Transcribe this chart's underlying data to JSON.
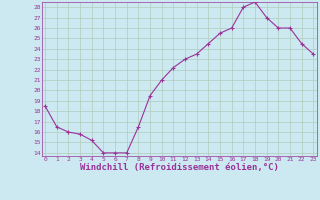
{
  "x": [
    0,
    1,
    2,
    3,
    4,
    5,
    6,
    7,
    8,
    9,
    10,
    11,
    12,
    13,
    14,
    15,
    16,
    17,
    18,
    19,
    20,
    21,
    22,
    23
  ],
  "y": [
    18.5,
    16.5,
    16.0,
    15.8,
    15.2,
    14.0,
    14.0,
    14.0,
    16.5,
    19.5,
    21.0,
    22.2,
    23.0,
    23.5,
    24.5,
    25.5,
    26.0,
    28.0,
    28.5,
    27.0,
    26.0,
    26.0,
    24.5,
    23.5
  ],
  "line_color": "#993399",
  "marker": "+",
  "markersize": 3,
  "xlabel": "Windchill (Refroidissement éolien,°C)",
  "xlabel_fontsize": 6.5,
  "bg_color": "#cce8f0",
  "grid_color": "#b0ccbb",
  "tick_color": "#993399",
  "label_color": "#993399",
  "ylim": [
    14,
    28
  ],
  "yticks": [
    14,
    15,
    16,
    17,
    18,
    19,
    20,
    21,
    22,
    23,
    24,
    25,
    26,
    27,
    28
  ],
  "xticks": [
    0,
    1,
    2,
    3,
    4,
    5,
    6,
    7,
    8,
    9,
    10,
    11,
    12,
    13,
    14,
    15,
    16,
    17,
    18,
    19,
    20,
    21,
    22,
    23
  ],
  "xlim": [
    -0.3,
    23.3
  ]
}
